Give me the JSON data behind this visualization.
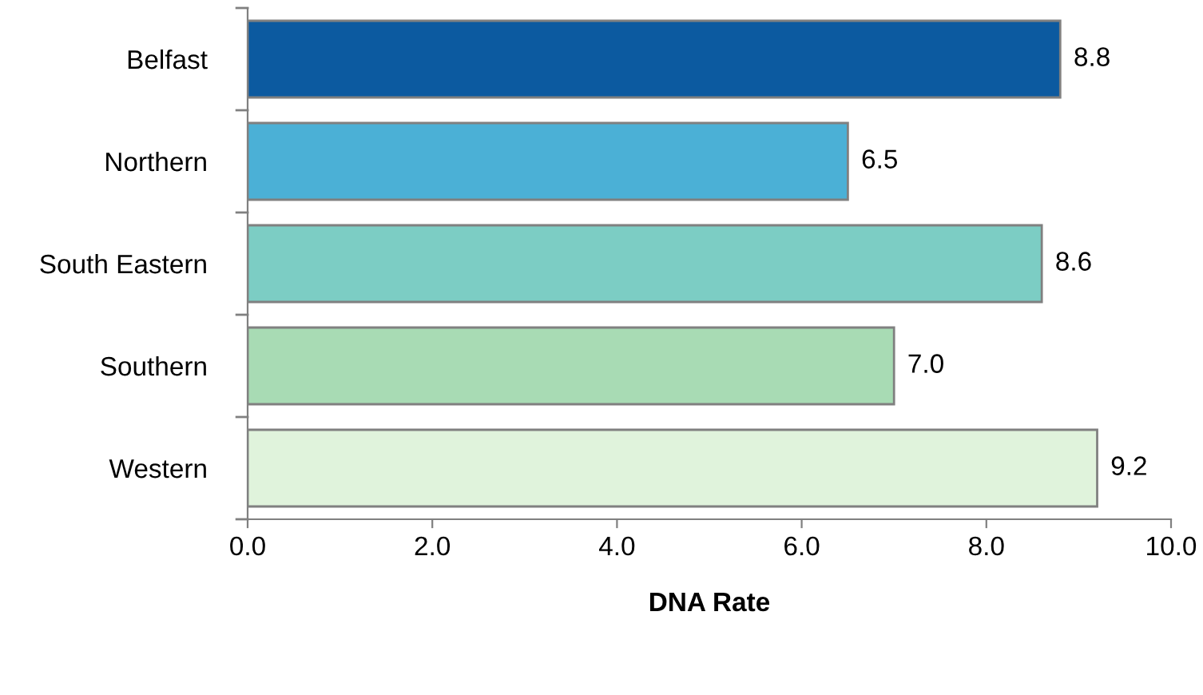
{
  "chart_data": {
    "type": "bar",
    "orientation": "horizontal",
    "xlabel": "DNA Rate",
    "categories": [
      "Belfast",
      "Northern",
      "South Eastern",
      "Southern",
      "Western"
    ],
    "values": [
      8.8,
      6.5,
      8.6,
      7.0,
      9.2
    ],
    "colors": [
      "#0c5aa0",
      "#4bb0d6",
      "#7ccdc4",
      "#a8dbb4",
      "#e0f3dc"
    ],
    "value_labels": [
      "8.8",
      "6.5",
      "8.6",
      "7.0",
      "9.2"
    ],
    "xlim": [
      0,
      10
    ],
    "xticks": [
      {
        "value": 0,
        "label": "0.0"
      },
      {
        "value": 2,
        "label": "2.0"
      },
      {
        "value": 4,
        "label": "4.0"
      },
      {
        "value": 6,
        "label": "6.0"
      },
      {
        "value": 8,
        "label": "8.0"
      },
      {
        "value": 10,
        "label": "10.0"
      }
    ],
    "grid": false,
    "legend": false
  }
}
